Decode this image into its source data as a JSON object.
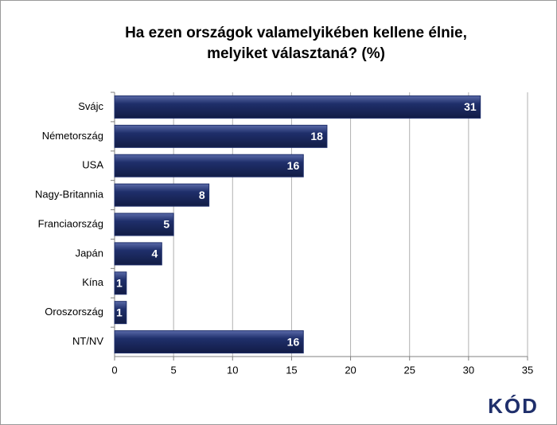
{
  "chart_data": {
    "type": "hbar",
    "title": [
      "Ha ezen országok valamelyikében kellene élnie,",
      "melyiket választaná? (%)"
    ],
    "categories": [
      "Svájc",
      "Németország",
      "USA",
      "Nagy-Britannia",
      "Franciaország",
      "Japán",
      "Kína",
      "Oroszország",
      "NT/NV"
    ],
    "values": [
      31,
      18,
      16,
      8,
      5,
      4,
      1,
      1,
      16
    ],
    "color": "#1f2f6b",
    "xlim": [
      0,
      35
    ],
    "xticks": [
      0,
      5,
      10,
      15,
      20,
      25,
      30,
      35
    ],
    "grid": true
  },
  "logo": "KÓD"
}
